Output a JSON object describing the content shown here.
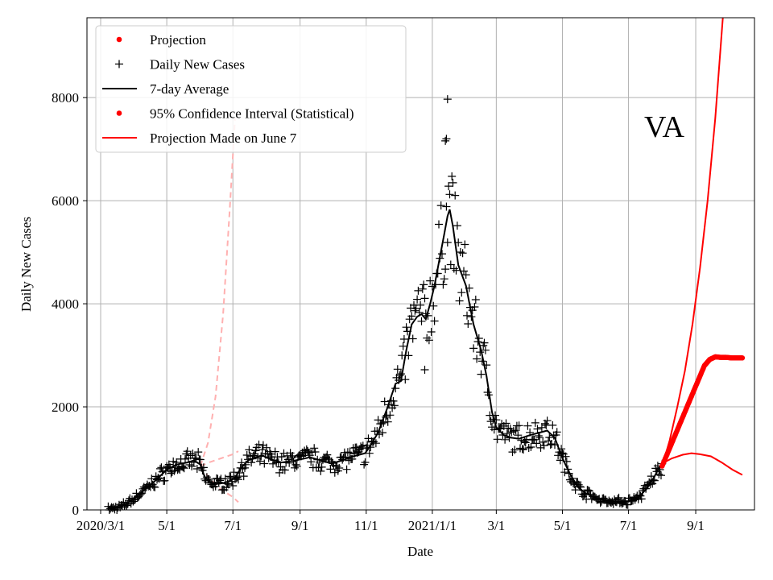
{
  "chart_data": {
    "type": "line",
    "title": "",
    "state_label": "VA",
    "xlabel": "Date",
    "ylabel": "Daily New Cases",
    "x_axis": {
      "start_date": "2020-03-01",
      "end_date": "2021-10-20",
      "tick_dates": [
        "2020-03-01",
        "2020-05-01",
        "2020-07-01",
        "2020-09-01",
        "2020-11-01",
        "2021-01-01",
        "2021-03-01",
        "2021-05-01",
        "2021-07-01",
        "2021-09-01"
      ],
      "tick_labels": [
        "2020/3/1",
        "5/1",
        "7/1",
        "9/1",
        "11/1",
        "2021/1/1",
        "3/1",
        "5/1",
        "7/1",
        "9/1"
      ]
    },
    "y_axis": {
      "ylim": [
        0,
        9550
      ],
      "ticks": [
        0,
        2000,
        4000,
        6000,
        8000
      ],
      "tick_labels": [
        "0",
        "2000",
        "4000",
        "6000",
        "8000"
      ]
    },
    "grid": true,
    "legend": {
      "location": "top-left",
      "entries": [
        {
          "label": "Projection",
          "style": "dot",
          "color": "#ff0000"
        },
        {
          "label": "Daily New Cases",
          "style": "plus",
          "color": "#000000"
        },
        {
          "label": "7-day Average",
          "style": "line",
          "color": "#000000"
        },
        {
          "label": "95% Confidence Interval (Statistical)",
          "style": "dot",
          "color": "#ff0000"
        },
        {
          "label": "Projection Made on June 7",
          "style": "line",
          "color": "#ff0000"
        }
      ]
    },
    "series": [
      {
        "name": "7-day Average",
        "kind": "line",
        "color": "#000000",
        "points": [
          [
            "2020-03-10",
            20
          ],
          [
            "2020-03-20",
            60
          ],
          [
            "2020-04-01",
            220
          ],
          [
            "2020-04-10",
            380
          ],
          [
            "2020-04-20",
            560
          ],
          [
            "2020-05-01",
            780
          ],
          [
            "2020-05-10",
            880
          ],
          [
            "2020-05-20",
            920
          ],
          [
            "2020-05-26",
            960
          ],
          [
            "2020-06-01",
            880
          ],
          [
            "2020-06-05",
            640
          ],
          [
            "2020-06-10",
            540
          ],
          [
            "2020-06-15",
            500
          ],
          [
            "2020-06-22",
            520
          ],
          [
            "2020-06-28",
            560
          ],
          [
            "2020-07-03",
            620
          ],
          [
            "2020-07-08",
            800
          ],
          [
            "2020-07-15",
            960
          ],
          [
            "2020-07-22",
            1020
          ],
          [
            "2020-07-28",
            1060
          ],
          [
            "2020-08-05",
            980
          ],
          [
            "2020-08-15",
            920
          ],
          [
            "2020-08-25",
            950
          ],
          [
            "2020-09-01",
            980
          ],
          [
            "2020-09-10",
            1020
          ],
          [
            "2020-09-20",
            960
          ],
          [
            "2020-09-30",
            900
          ],
          [
            "2020-10-10",
            960
          ],
          [
            "2020-10-20",
            1040
          ],
          [
            "2020-10-31",
            1100
          ],
          [
            "2020-11-05",
            1250
          ],
          [
            "2020-11-12",
            1500
          ],
          [
            "2020-11-20",
            1950
          ],
          [
            "2020-11-28",
            2450
          ],
          [
            "2020-12-03",
            2500
          ],
          [
            "2020-12-08",
            3100
          ],
          [
            "2020-12-13",
            3600
          ],
          [
            "2020-12-18",
            3750
          ],
          [
            "2020-12-22",
            3800
          ],
          [
            "2020-12-26",
            3700
          ],
          [
            "2020-12-30",
            4000
          ],
          [
            "2021-01-03",
            4350
          ],
          [
            "2021-01-07",
            4800
          ],
          [
            "2021-01-12",
            5350
          ],
          [
            "2021-01-15",
            5700
          ],
          [
            "2021-01-17",
            5830
          ],
          [
            "2021-01-20",
            5500
          ],
          [
            "2021-01-25",
            4750
          ],
          [
            "2021-02-01",
            4350
          ],
          [
            "2021-02-08",
            3600
          ],
          [
            "2021-02-15",
            3100
          ],
          [
            "2021-02-20",
            2600
          ],
          [
            "2021-02-25",
            1900
          ],
          [
            "2021-03-01",
            1600
          ],
          [
            "2021-03-08",
            1450
          ],
          [
            "2021-03-15",
            1400
          ],
          [
            "2021-03-22",
            1380
          ],
          [
            "2021-04-01",
            1450
          ],
          [
            "2021-04-10",
            1500
          ],
          [
            "2021-04-17",
            1540
          ],
          [
            "2021-04-24",
            1400
          ],
          [
            "2021-05-01",
            1000
          ],
          [
            "2021-05-08",
            700
          ],
          [
            "2021-05-15",
            450
          ],
          [
            "2021-05-22",
            330
          ],
          [
            "2021-06-01",
            230
          ],
          [
            "2021-06-10",
            180
          ],
          [
            "2021-06-20",
            160
          ],
          [
            "2021-07-01",
            170
          ],
          [
            "2021-07-10",
            240
          ],
          [
            "2021-07-18",
            420
          ],
          [
            "2021-07-25",
            650
          ],
          [
            "2021-07-30",
            850
          ]
        ]
      },
      {
        "name": "Projection Made on June 7 (median)",
        "kind": "line",
        "color": "#ff0000",
        "points": [
          [
            "2021-08-01",
            900
          ],
          [
            "2021-08-10",
            1000
          ],
          [
            "2021-08-20",
            1070
          ],
          [
            "2021-08-28",
            1100
          ],
          [
            "2021-09-05",
            1080
          ],
          [
            "2021-09-15",
            1040
          ],
          [
            "2021-09-25",
            920
          ],
          [
            "2021-10-05",
            780
          ],
          [
            "2021-10-14",
            680
          ]
        ]
      },
      {
        "name": "Projection Made on June 7 (upper)",
        "kind": "line",
        "color": "#ff0000",
        "points": [
          [
            "2021-08-01",
            850
          ],
          [
            "2021-08-08",
            1350
          ],
          [
            "2021-08-15",
            2000
          ],
          [
            "2021-08-22",
            2700
          ],
          [
            "2021-08-29",
            3600
          ],
          [
            "2021-09-05",
            4700
          ],
          [
            "2021-09-12",
            6000
          ],
          [
            "2021-09-19",
            7600
          ],
          [
            "2021-09-26",
            9550
          ]
        ]
      },
      {
        "name": "Projection",
        "kind": "dots",
        "color": "#ff0000",
        "points": [
          [
            "2021-08-01",
            850
          ],
          [
            "2021-08-05",
            1050
          ],
          [
            "2021-08-10",
            1300
          ],
          [
            "2021-08-15",
            1550
          ],
          [
            "2021-08-20",
            1800
          ],
          [
            "2021-08-25",
            2050
          ],
          [
            "2021-08-30",
            2300
          ],
          [
            "2021-09-04",
            2550
          ],
          [
            "2021-09-09",
            2800
          ],
          [
            "2021-09-14",
            2920
          ],
          [
            "2021-09-19",
            2970
          ],
          [
            "2021-09-24",
            2960
          ],
          [
            "2021-09-29",
            2960
          ],
          [
            "2021-10-04",
            2950
          ],
          [
            "2021-10-09",
            2950
          ],
          [
            "2021-10-14",
            2950
          ]
        ]
      },
      {
        "name": "Old projection band (upper)",
        "kind": "dashed",
        "color": "#ffb0b0",
        "points": [
          [
            "2020-06-01",
            850
          ],
          [
            "2020-06-08",
            1300
          ],
          [
            "2020-06-15",
            2200
          ],
          [
            "2020-06-22",
            3800
          ],
          [
            "2020-06-28",
            5800
          ],
          [
            "2020-07-03",
            7600
          ]
        ]
      },
      {
        "name": "Old projection band (middle)",
        "kind": "dashed",
        "color": "#ffb0b0",
        "points": [
          [
            "2020-06-01",
            850
          ],
          [
            "2020-06-10",
            930
          ],
          [
            "2020-06-20",
            1000
          ],
          [
            "2020-07-01",
            1080
          ],
          [
            "2020-07-06",
            1140
          ]
        ]
      },
      {
        "name": "Old projection band (lower)",
        "kind": "dashed",
        "color": "#ffb0b0",
        "points": [
          [
            "2020-06-01",
            850
          ],
          [
            "2020-06-10",
            600
          ],
          [
            "2020-06-20",
            400
          ],
          [
            "2020-07-01",
            250
          ],
          [
            "2020-07-06",
            150
          ]
        ]
      },
      {
        "name": "Daily New Cases",
        "kind": "plus",
        "color": "#000000",
        "outliers": [
          [
            "2021-01-15",
            7970
          ],
          [
            "2021-01-14",
            7200
          ],
          [
            "2021-01-13",
            7160
          ],
          [
            "2020-12-25",
            2720
          ]
        ]
      }
    ]
  }
}
